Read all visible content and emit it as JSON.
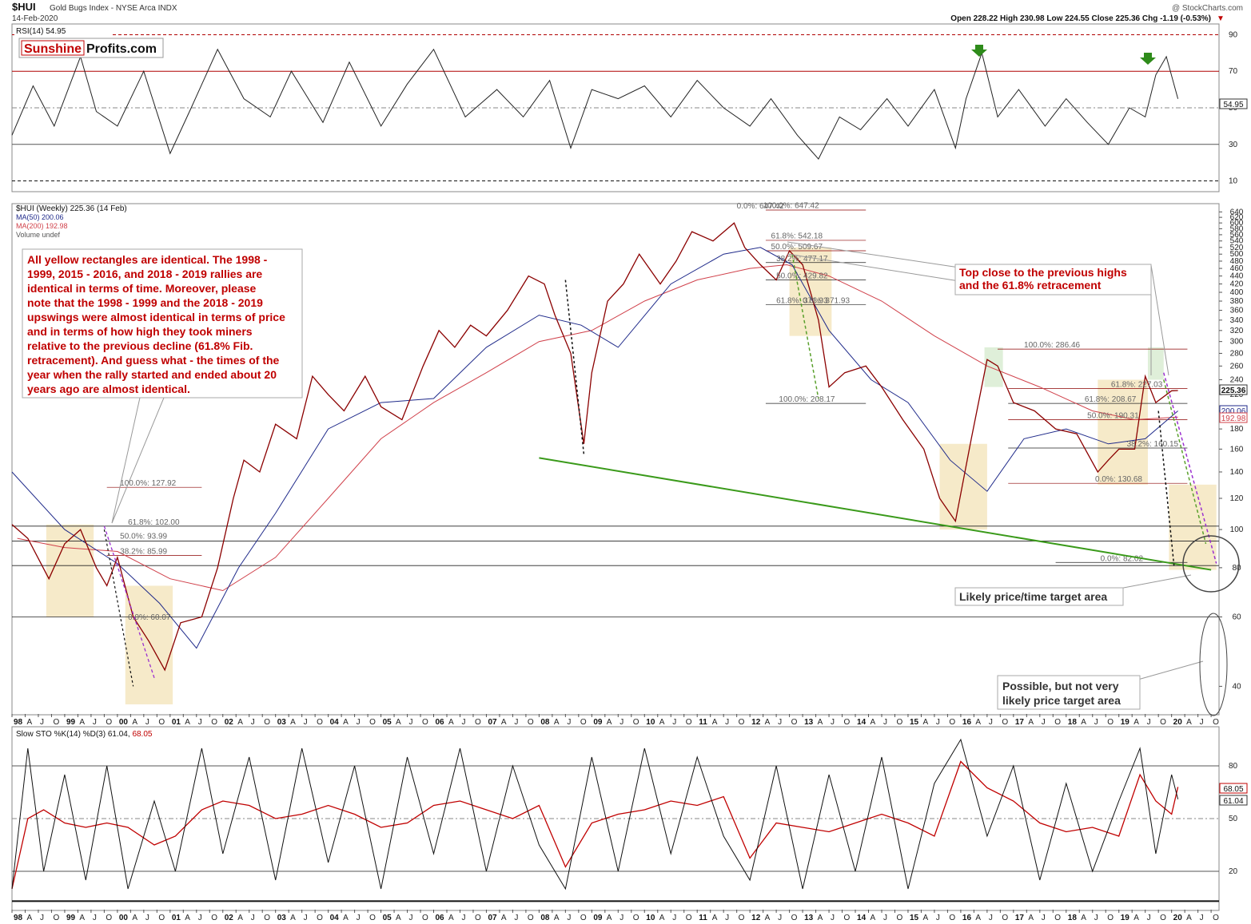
{
  "header": {
    "symbol": "$HUI",
    "name": "Gold Bugs Index - NYSE Arca INDX",
    "date": "14-Feb-2020",
    "watermark": "@ StockCharts.com",
    "ohlc": "Open 228.22  High 230.98  Low 224.55  Close 225.36  Chg -1.19 (-0.53%)",
    "change_arrow": "▼"
  },
  "brand": {
    "part1": "Sunshine",
    "part2": "Profits.com"
  },
  "rsi": {
    "legend": "RSI(14) 54.95",
    "value_label": "54.95",
    "levels": [
      10,
      30,
      50,
      70,
      90
    ]
  },
  "price_panel": {
    "legend_main": "$HUI (Weekly) 225.36 (14 Feb)",
    "legend_ma50": "MA(50) 200.06",
    "legend_ma200": "MA(200) 192.98",
    "legend_volume": "Volume undef",
    "last_price_label": "225.36",
    "ma50_label": "200.06",
    "ma200_label": "192.98",
    "ticks": [
      40,
      60,
      80,
      100,
      120,
      140,
      160,
      180,
      200,
      220,
      240,
      260,
      280,
      300,
      320,
      340,
      360,
      380,
      400,
      420,
      440,
      460,
      480,
      500,
      520,
      540,
      560,
      580,
      600,
      620,
      640
    ]
  },
  "sto": {
    "legend_main": "Slow STO %K(14) %D(3) 61.04, ",
    "legend_d": "68.05",
    "label_k": "61.04",
    "label_d": "68.05",
    "levels": [
      20,
      50,
      80
    ]
  },
  "x_axis": [
    {
      "label": "98",
      "major": true
    },
    {
      "label": "A"
    },
    {
      "label": "J"
    },
    {
      "label": "O"
    },
    {
      "label": "99",
      "major": true
    },
    {
      "label": "A"
    },
    {
      "label": "J"
    },
    {
      "label": "O"
    },
    {
      "label": "00",
      "major": true
    },
    {
      "label": "A"
    },
    {
      "label": "J"
    },
    {
      "label": "O"
    },
    {
      "label": "01",
      "major": true
    },
    {
      "label": "A"
    },
    {
      "label": "J"
    },
    {
      "label": "O"
    },
    {
      "label": "02",
      "major": true
    },
    {
      "label": "A"
    },
    {
      "label": "J"
    },
    {
      "label": "O"
    },
    {
      "label": "03",
      "major": true
    },
    {
      "label": "A"
    },
    {
      "label": "J"
    },
    {
      "label": "O"
    },
    {
      "label": "04",
      "major": true
    },
    {
      "label": "A"
    },
    {
      "label": "J"
    },
    {
      "label": "O"
    },
    {
      "label": "05",
      "major": true
    },
    {
      "label": "A"
    },
    {
      "label": "J"
    },
    {
      "label": "O"
    },
    {
      "label": "06",
      "major": true
    },
    {
      "label": "A"
    },
    {
      "label": "J"
    },
    {
      "label": "O"
    },
    {
      "label": "07",
      "major": true
    },
    {
      "label": "A"
    },
    {
      "label": "J"
    },
    {
      "label": "O"
    },
    {
      "label": "08",
      "major": true
    },
    {
      "label": "A"
    },
    {
      "label": "J"
    },
    {
      "label": "O"
    },
    {
      "label": "09",
      "major": true
    },
    {
      "label": "A"
    },
    {
      "label": "J"
    },
    {
      "label": "O"
    },
    {
      "label": "10",
      "major": true
    },
    {
      "label": "A"
    },
    {
      "label": "J"
    },
    {
      "label": "O"
    },
    {
      "label": "11",
      "major": true
    },
    {
      "label": "A"
    },
    {
      "label": "J"
    },
    {
      "label": "O"
    },
    {
      "label": "12",
      "major": true
    },
    {
      "label": "A"
    },
    {
      "label": "J"
    },
    {
      "label": "O"
    },
    {
      "label": "13",
      "major": true
    },
    {
      "label": "A"
    },
    {
      "label": "J"
    },
    {
      "label": "O"
    },
    {
      "label": "14",
      "major": true
    },
    {
      "label": "A"
    },
    {
      "label": "J"
    },
    {
      "label": "O"
    },
    {
      "label": "15",
      "major": true
    },
    {
      "label": "A"
    },
    {
      "label": "J"
    },
    {
      "label": "O"
    },
    {
      "label": "16",
      "major": true
    },
    {
      "label": "A"
    },
    {
      "label": "J"
    },
    {
      "label": "O"
    },
    {
      "label": "17",
      "major": true
    },
    {
      "label": "A"
    },
    {
      "label": "J"
    },
    {
      "label": "O"
    },
    {
      "label": "18",
      "major": true
    },
    {
      "label": "A"
    },
    {
      "label": "J"
    },
    {
      "label": "O"
    },
    {
      "label": "19",
      "major": true
    },
    {
      "label": "A"
    },
    {
      "label": "J"
    },
    {
      "label": "O"
    },
    {
      "label": "20",
      "major": true
    },
    {
      "label": "A"
    },
    {
      "label": "J"
    },
    {
      "label": "O"
    }
  ],
  "fib_labels": [
    {
      "text": "100.0%: 127.92",
      "t": 2000.05,
      "price": 128
    },
    {
      "text": "61.8%: 102.00",
      "t": 2000.2,
      "price": 102
    },
    {
      "text": "50.0%: 93.99",
      "t": 2000.05,
      "price": 94
    },
    {
      "text": "38.2%: 85.99",
      "t": 2000.05,
      "price": 86
    },
    {
      "text": "0.0%: 60.07",
      "t": 2000.2,
      "price": 58.5
    },
    {
      "text": "0.0%: 647.42",
      "t": 2011.75,
      "price": 647
    },
    {
      "text": "100.0%: 647.42",
      "t": 2012.25,
      "price": 649
    },
    {
      "text": "61.8%: 542.18",
      "t": 2012.4,
      "price": 543
    },
    {
      "text": "50.0%: 509.67",
      "t": 2012.4,
      "price": 510
    },
    {
      "text": "38.2%: 477.17",
      "t": 2012.5,
      "price": 476
    },
    {
      "text": "50.0%: 429.82",
      "t": 2012.5,
      "price": 430
    },
    {
      "text": "61.8%: 371.93",
      "t": 2012.5,
      "price": 372
    },
    {
      "text": "0.0%: 371.93",
      "t": 2013.0,
      "price": 372
    },
    {
      "text": "100.0%: 208.17",
      "t": 2012.55,
      "price": 209
    },
    {
      "text": "100.0%: 286.46",
      "t": 2017.2,
      "price": 287
    },
    {
      "text": "61.8%: 227.03",
      "t": 2018.85,
      "price": 228
    },
    {
      "text": "61.8%: 208.67",
      "t": 2018.35,
      "price": 209
    },
    {
      "text": "50.0%: 190.31",
      "t": 2018.4,
      "price": 190
    },
    {
      "text": "38.2%: 160.15",
      "t": 2019.15,
      "price": 161
    },
    {
      "text": "0.0%: 130.68",
      "t": 2018.55,
      "price": 131
    },
    {
      "text": "0.0%: 82.02",
      "t": 2018.65,
      "price": 82.5
    }
  ],
  "annotations": {
    "main_text": [
      "All yellow rectangles are identical. The 1998 -",
      "1999, 2015 - 2016, and 2018 - 2019 rallies are",
      "identical in terms of time. Moreover, please",
      "note that the 1998 - 1999 and the 2018 - 2019",
      "upswings were almost identical in terms of price",
      "and in terms of how high they took miners",
      "relative to the previous decline (61.8% Fib.",
      "retracement). And guess what - the times of the",
      "year when the rally started and ended about 20",
      "years ago are almost identical."
    ],
    "top_close": [
      "Top close to the previous highs",
      "and the 61.8% retracement"
    ],
    "likely_target": [
      "Likely price/time target area"
    ],
    "possible_target": [
      "Possible, but not very",
      "likely price target area"
    ]
  },
  "chart_data": {
    "type": "line",
    "title": "$HUI Gold Bugs Index - NYSE Arca INDX",
    "xlabel": "",
    "ylabel": "",
    "x_range": [
      1998.0,
      2020.9
    ],
    "ylim": [
      35,
      650
    ],
    "y_scale": "log",
    "grid": false,
    "legend_placement": "top-left",
    "series": [
      {
        "name": "$HUI (Weekly)",
        "color": "#8b0000",
        "x": [
          1998.0,
          1998.3,
          1998.7,
          1999.0,
          1999.3,
          1999.6,
          1999.8,
          2000.0,
          2000.3,
          2000.6,
          2000.9,
          2001.2,
          2001.6,
          2001.9,
          2002.2,
          2002.4,
          2002.7,
          2003.0,
          2003.4,
          2003.7,
          2004.0,
          2004.3,
          2004.7,
          2005.0,
          2005.4,
          2005.8,
          2006.1,
          2006.4,
          2006.7,
          2007.0,
          2007.4,
          2007.8,
          2008.1,
          2008.3,
          2008.6,
          2008.85,
          2009.0,
          2009.3,
          2009.6,
          2009.9,
          2010.3,
          2010.6,
          2010.9,
          2011.3,
          2011.7,
          2011.9,
          2012.2,
          2012.5,
          2012.75,
          2013.0,
          2013.3,
          2013.5,
          2013.8,
          2014.2,
          2014.5,
          2014.9,
          2015.3,
          2015.6,
          2015.9,
          2016.2,
          2016.5,
          2016.7,
          2017.0,
          2017.4,
          2017.8,
          2018.2,
          2018.6,
          2018.8,
          2019.0,
          2019.3,
          2019.5,
          2019.7,
          2020.0,
          2020.12
        ],
        "values": [
          103,
          95,
          75,
          92,
          100,
          80,
          72,
          85,
          60,
          52,
          44,
          58,
          60,
          80,
          120,
          150,
          140,
          185,
          170,
          245,
          220,
          200,
          245,
          205,
          190,
          260,
          320,
          290,
          330,
          310,
          360,
          440,
          420,
          350,
          280,
          165,
          250,
          380,
          420,
          500,
          420,
          480,
          570,
          540,
          600,
          520,
          470,
          430,
          510,
          470,
          340,
          230,
          250,
          260,
          230,
          190,
          160,
          120,
          105,
          170,
          270,
          260,
          210,
          200,
          180,
          175,
          140,
          150,
          160,
          160,
          245,
          210,
          225,
          225.36
        ]
      },
      {
        "name": "MA(50)",
        "color": "#1f2a8a",
        "x": [
          1998.0,
          1999.0,
          2000.0,
          2000.8,
          2001.5,
          2002.3,
          2003.0,
          2004.0,
          2005.0,
          2006.0,
          2007.0,
          2008.0,
          2008.8,
          2009.5,
          2010.5,
          2011.5,
          2012.2,
          2012.8,
          2013.5,
          2014.3,
          2015.0,
          2015.8,
          2016.5,
          2017.2,
          2018.0,
          2018.8,
          2019.5,
          2020.12
        ],
        "values": [
          140,
          100,
          82,
          65,
          50,
          80,
          110,
          180,
          210,
          215,
          290,
          350,
          330,
          290,
          420,
          500,
          520,
          470,
          320,
          240,
          210,
          150,
          125,
          170,
          180,
          165,
          170,
          200.06
        ]
      },
      {
        "name": "MA(200)",
        "color": "#d0404a",
        "x": [
          1998.1,
          1999.0,
          2000.0,
          2001.0,
          2002.0,
          2003.0,
          2004.0,
          2005.0,
          2006.0,
          2007.0,
          2008.0,
          2009.0,
          2010.0,
          2011.0,
          2012.0,
          2012.7,
          2013.5,
          2014.5,
          2015.5,
          2016.5,
          2017.5,
          2018.5,
          2019.3,
          2020.12
        ],
        "values": [
          95,
          90,
          88,
          75,
          70,
          85,
          120,
          170,
          210,
          250,
          300,
          320,
          380,
          430,
          460,
          470,
          440,
          380,
          310,
          260,
          230,
          200,
          190,
          192.98
        ]
      }
    ]
  },
  "rsi_data": {
    "x": [
      1998.0,
      1998.4,
      1998.8,
      1999.3,
      1999.6,
      2000.0,
      2000.5,
      2001.0,
      2001.4,
      2001.9,
      2002.4,
      2002.9,
      2003.3,
      2003.9,
      2004.4,
      2005.0,
      2005.5,
      2006.0,
      2006.6,
      2007.2,
      2007.7,
      2008.2,
      2008.6,
      2009.0,
      2009.5,
      2010.0,
      2010.5,
      2011.0,
      2011.5,
      2012.0,
      2012.4,
      2012.9,
      2013.3,
      2013.7,
      2014.1,
      2014.6,
      2015.0,
      2015.5,
      2015.9,
      2016.1,
      2016.4,
      2016.7,
      2017.1,
      2017.6,
      2018.0,
      2018.4,
      2018.8,
      2019.2,
      2019.5,
      2019.7,
      2019.9,
      2020.12
    ],
    "values": [
      35,
      62,
      40,
      78,
      48,
      40,
      70,
      25,
      50,
      82,
      55,
      45,
      70,
      42,
      75,
      40,
      63,
      82,
      45,
      60,
      45,
      65,
      28,
      60,
      55,
      62,
      45,
      65,
      50,
      40,
      55,
      35,
      22,
      45,
      38,
      55,
      40,
      60,
      28,
      55,
      80,
      45,
      60,
      40,
      55,
      42,
      30,
      50,
      45,
      68,
      78,
      54.95
    ]
  },
  "sto_data": {
    "x": [
      1998.0,
      1998.3,
      1998.6,
      1999.0,
      1999.4,
      1999.8,
      2000.2,
      2000.7,
      2001.1,
      2001.6,
      2002.0,
      2002.5,
      2003.0,
      2003.5,
      2004.0,
      2004.5,
      2005.0,
      2005.5,
      2006.0,
      2006.5,
      2007.0,
      2007.5,
      2008.0,
      2008.5,
      2009.0,
      2009.5,
      2010.0,
      2010.5,
      2011.0,
      2011.5,
      2012.0,
      2012.5,
      2013.0,
      2013.5,
      2014.0,
      2014.5,
      2015.0,
      2015.5,
      2016.0,
      2016.5,
      2017.0,
      2017.5,
      2018.0,
      2018.5,
      2019.0,
      2019.4,
      2019.7,
      2020.0,
      2020.12
    ],
    "values": [
      10,
      90,
      20,
      75,
      15,
      80,
      10,
      60,
      20,
      90,
      30,
      85,
      15,
      90,
      25,
      80,
      10,
      85,
      30,
      90,
      20,
      80,
      35,
      10,
      85,
      20,
      90,
      30,
      85,
      40,
      15,
      80,
      10,
      75,
      20,
      85,
      10,
      70,
      95,
      40,
      80,
      15,
      70,
      20,
      60,
      90,
      30,
      75,
      61.04
    ]
  }
}
